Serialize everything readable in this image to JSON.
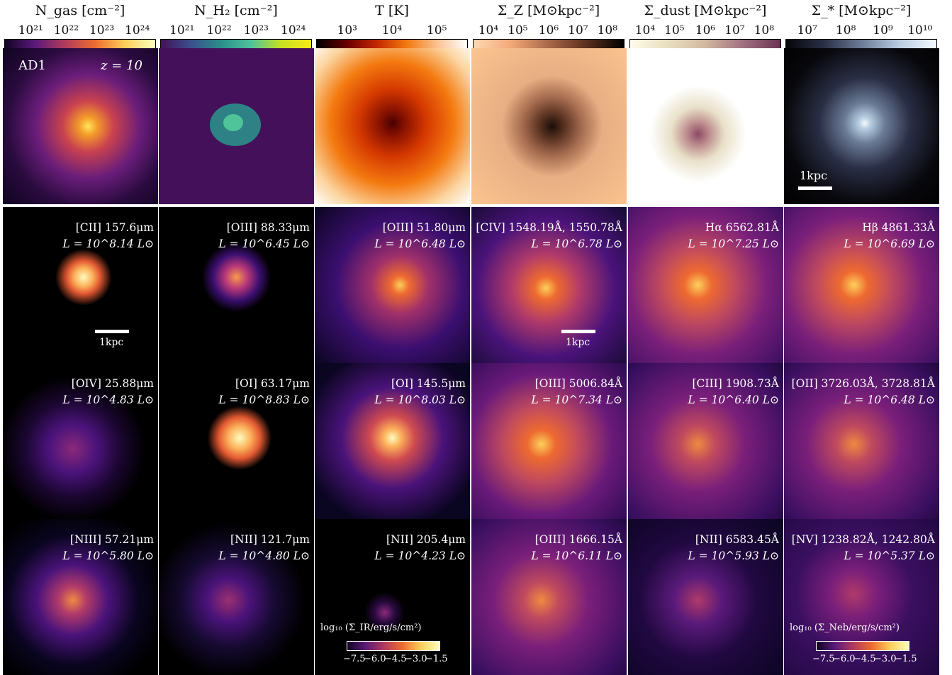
{
  "colorbars": [
    {
      "title": "N_gas [cm⁻²]",
      "ticks": [
        "10²¹",
        "10²²",
        "10²³",
        "10²⁴"
      ]
    },
    {
      "title": "N_H₂ [cm⁻²]",
      "ticks": [
        "10²¹",
        "10²²",
        "10²³",
        "10²⁴"
      ]
    },
    {
      "title": "T [K]",
      "ticks": [
        "10³",
        "10⁴",
        "10⁵"
      ]
    },
    {
      "title": "Σ_Z [M⊙kpc⁻²]",
      "ticks": [
        "10⁴",
        "10⁵",
        "10⁶",
        "10⁷",
        "10⁸"
      ]
    },
    {
      "title": "Σ_dust [M⊙kpc⁻²]",
      "ticks": [
        "10⁴",
        "10⁵",
        "10⁶",
        "10⁷",
        "10⁸"
      ]
    },
    {
      "title": "Σ_* [M⊙kpc⁻²]",
      "ticks": [
        "10⁷",
        "10⁸",
        "10⁹",
        "10¹⁰"
      ]
    }
  ],
  "top_labels": {
    "model": "AD1",
    "redshift": "z = 10",
    "scale": "1kpc"
  },
  "lines": [
    {
      "name": "[CII] 157.6μm",
      "lum": "L = 10^8.14 L⊙"
    },
    {
      "name": "[OIII] 88.33μm",
      "lum": "L = 10^6.45 L⊙"
    },
    {
      "name": "[OIII] 51.80μm",
      "lum": "L = 10^6.48 L⊙"
    },
    {
      "name": "[CIV] 1548.19Å, 1550.78Å",
      "lum": "L = 10^6.78 L⊙"
    },
    {
      "name": "Hα 6562.81Å",
      "lum": "L = 10^7.25 L⊙"
    },
    {
      "name": "Hβ 4861.33Å",
      "lum": "L = 10^6.69 L⊙"
    },
    {
      "name": "[OIV] 25.88μm",
      "lum": "L = 10^4.83 L⊙"
    },
    {
      "name": "[OI] 63.17μm",
      "lum": "L = 10^8.83 L⊙"
    },
    {
      "name": "[OI] 145.5μm",
      "lum": "L = 10^8.03 L⊙"
    },
    {
      "name": "[OIII] 5006.84Å",
      "lum": "L = 10^7.34 L⊙"
    },
    {
      "name": "[CIII] 1908.73Å",
      "lum": "L = 10^6.40 L⊙"
    },
    {
      "name": "[OII] 3726.03Å, 3728.81Å",
      "lum": "L = 10^6.48 L⊙"
    },
    {
      "name": "[NIII] 57.21μm",
      "lum": "L = 10^5.80 L⊙"
    },
    {
      "name": "[NII] 121.7μm",
      "lum": "L = 10^4.80 L⊙"
    },
    {
      "name": "[NII] 205.4μm",
      "lum": "L = 10^4.23 L⊙"
    },
    {
      "name": "[OIII] 1666.15Å",
      "lum": "L = 10^6.11 L⊙"
    },
    {
      "name": "[NII] 6583.45Å",
      "lum": "L = 10^5.93 L⊙"
    },
    {
      "name": "[NV] 1238.82Å, 1242.80Å",
      "lum": "L = 10^5.37 L⊙"
    }
  ],
  "scale_label": "1kpc",
  "ir_legend": {
    "label": "log₁₀ (Σ_IR/erg/s/cm²)",
    "ticks": [
      "−7.5",
      "−6.0",
      "−4.5",
      "−3.0",
      "−1.5"
    ]
  },
  "neb_legend": {
    "label": "log₁₀ (Σ_Neb/erg/s/cm²)",
    "ticks": [
      "−7.5",
      "−6.0",
      "−4.5",
      "−3.0",
      "−1.5"
    ]
  }
}
